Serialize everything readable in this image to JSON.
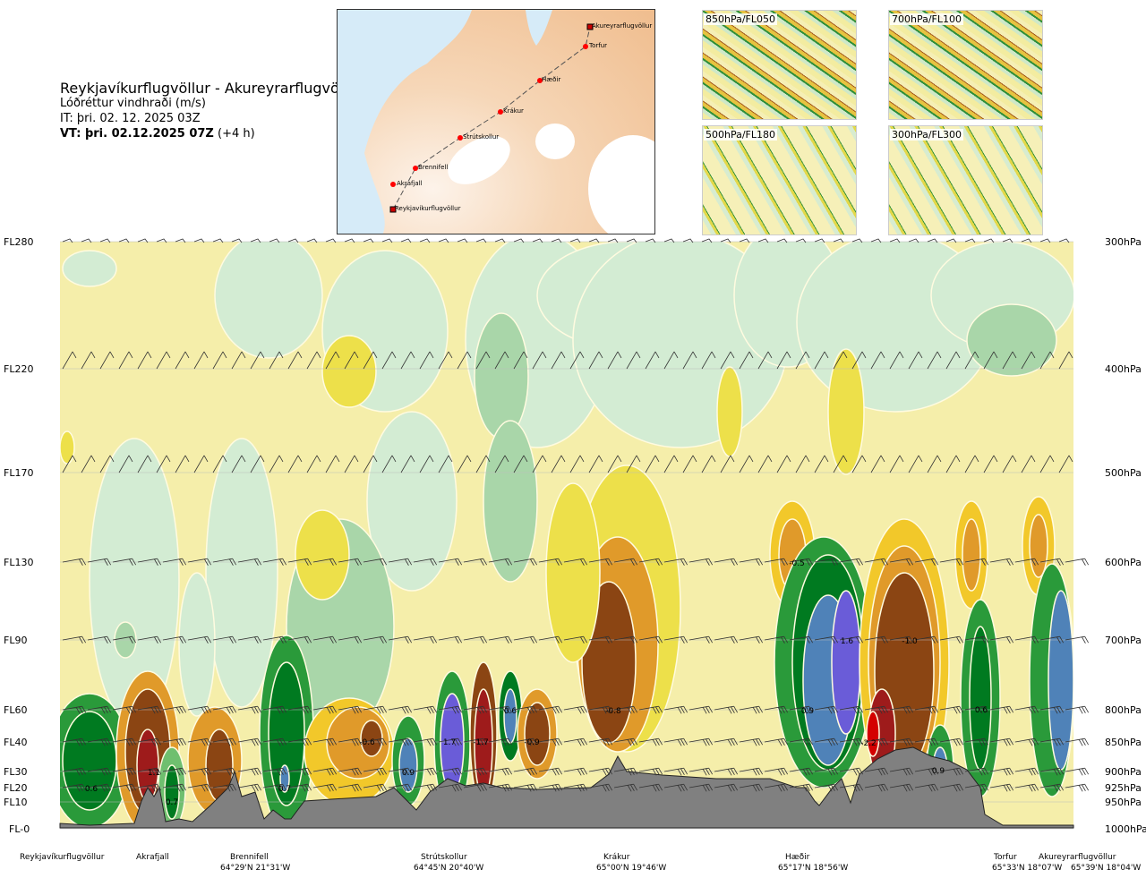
{
  "header": {
    "route": "Reykjavíkurflugvöllur - Akureyrarflugvöllur",
    "variable": "Lóðréttur vindhraði (m/s)",
    "issue_time": "IT: þri. 02. 12. 2025 03Z",
    "valid_time_bold": "VT: þri. 02.12.2025 07Z",
    "valid_offset": "(+4 h)"
  },
  "map": {
    "waypoints": [
      "Akureyrarflugvöllur",
      "Torfur",
      "Hæðir",
      "Krákur",
      "Strútskollur",
      "Brennifell",
      "Akrafjall",
      "Reykjavíkurflugvöllur"
    ]
  },
  "panels": [
    "850hPa/FL050",
    "700hPa/FL100",
    "500hPa/FL180",
    "300hPa/FL300"
  ],
  "chart_data": {
    "type": "heatmap",
    "title": "Lóðréttur vindhraði (m/s)",
    "left_axis": [
      "FL280",
      "FL220",
      "FL170",
      "FL130",
      "FL90",
      "FL60",
      "FL40",
      "FL30",
      "FL20",
      "FL10",
      "FL-0"
    ],
    "right_axis": [
      "300hPa",
      "400hPa",
      "500hPa",
      "600hPa",
      "700hPa",
      "800hPa",
      "850hPa",
      "900hPa",
      "925hPa",
      "950hPa",
      "1000hPa"
    ],
    "stations": [
      {
        "name": "Reykjavíkurflugvöllur",
        "coord": ""
      },
      {
        "name": "Akrafjall",
        "coord": ""
      },
      {
        "name": "Brennifell",
        "coord": "64°29'N 21°31'W"
      },
      {
        "name": "Strútskollur",
        "coord": "64°45'N 20°40'W"
      },
      {
        "name": "Krákur",
        "coord": "65°00'N 19°46'W"
      },
      {
        "name": "Hæðir",
        "coord": "65°17'N 18°56'W"
      },
      {
        "name": "Torfur",
        "coord": "65°33'N 18°07'W"
      },
      {
        "name": "Akureyrarflugvöllur",
        "coord": "65°39'N 18°04'W"
      }
    ],
    "extrema_labels": [
      "-0.5",
      "1.6",
      "-1.0",
      "-0.8",
      "0.9",
      "0.6",
      "-2.2",
      "0.6",
      "-0.6",
      "1.7",
      "-1.7",
      "-0.9",
      "0.9",
      "1.1",
      "0.6",
      "0.7",
      "0.7",
      "0.9"
    ]
  }
}
